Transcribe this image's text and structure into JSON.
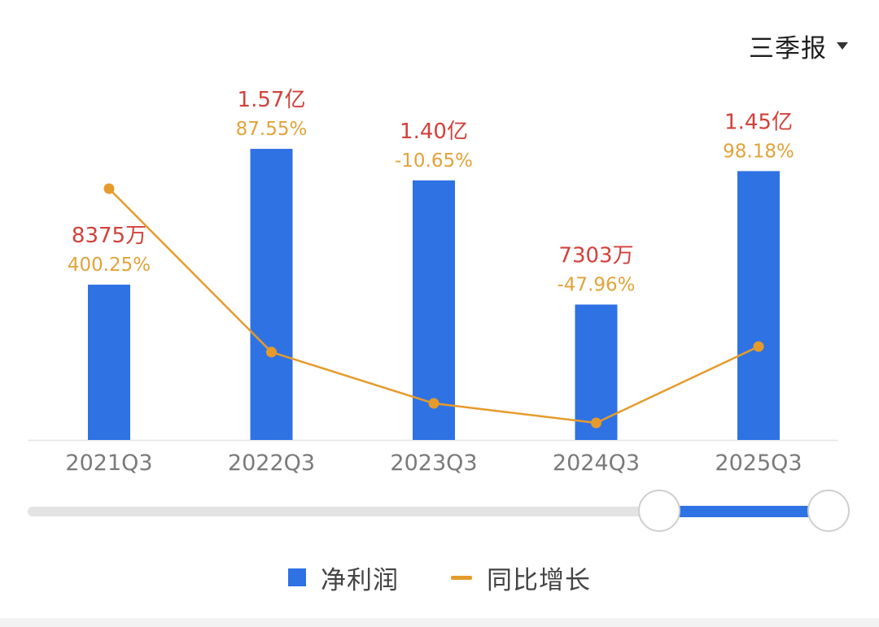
{
  "period_selector": {
    "label": "三季报",
    "icon": "caret-down-icon"
  },
  "legend": [
    {
      "label": "净利润",
      "icon": "bar-swatch-icon",
      "color": "#2f72e4"
    },
    {
      "label": "同比增长",
      "icon": "line-swatch-icon",
      "color": "#e59b2c"
    }
  ],
  "range_slider": {
    "start": 0.78,
    "end": 1.0
  },
  "chart_data": {
    "type": "bar",
    "categories": [
      "2021Q3",
      "2022Q3",
      "2023Q3",
      "2024Q3",
      "2025Q3"
    ],
    "series": [
      {
        "name": "净利润",
        "type": "bar",
        "values": [
          0.8375,
          1.57,
          1.4,
          0.7303,
          1.45
        ],
        "unit": "亿",
        "labels": [
          "8375万",
          "1.57亿",
          "1.40亿",
          "7303万",
          "1.45亿"
        ],
        "color": "#2f72e4",
        "label_color": "#d2413b"
      },
      {
        "name": "同比增长",
        "type": "line",
        "values": [
          400.25,
          87.55,
          -10.65,
          -47.96,
          98.18
        ],
        "unit": "%",
        "labels": [
          "400.25%",
          "87.55%",
          "-10.65%",
          "-47.96%",
          "98.18%"
        ],
        "color": "#e59b2c",
        "label_color": "#e2a33a"
      }
    ],
    "tick_color": "#7a7a7a",
    "grid": false,
    "legend_position": "bottom"
  }
}
